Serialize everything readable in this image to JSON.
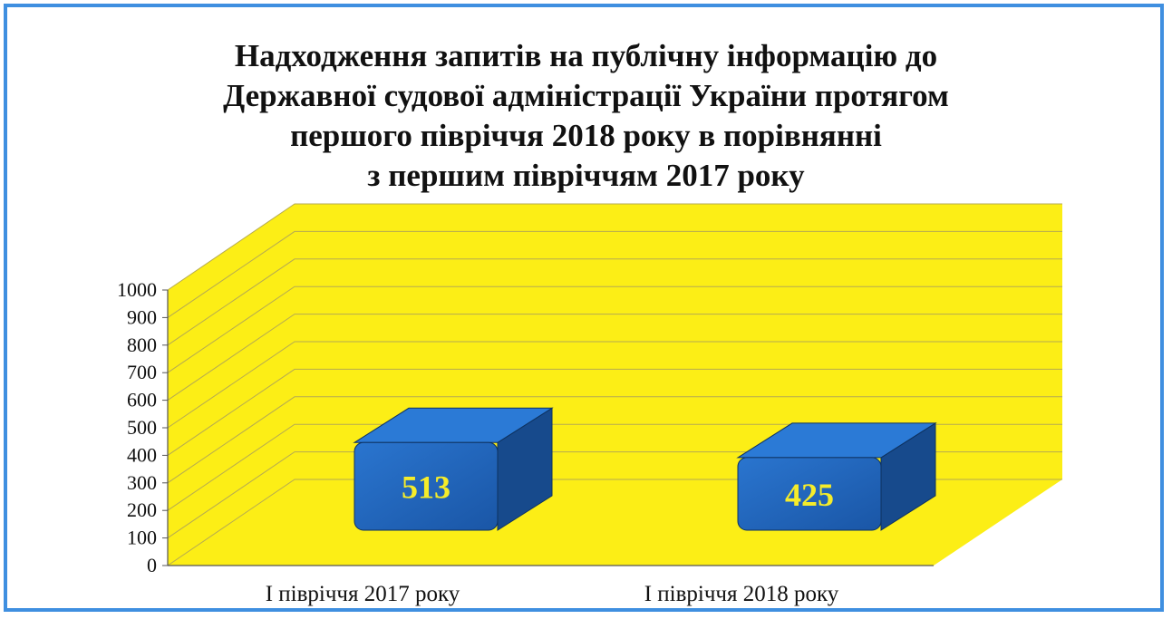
{
  "chart_data": {
    "type": "bar",
    "title_lines": [
      "Надходження запитів на публічну інформацію до",
      "Державної судової адміністрації України протягом",
      "першого півріччя 2018 року в порівнянні",
      "з першим півріччям 2017 року"
    ],
    "categories": [
      "І півріччя 2017 року",
      "І півріччя 2018 року"
    ],
    "values": [
      513,
      425
    ],
    "data_labels": [
      "513",
      "425"
    ],
    "ylim": [
      0,
      1000
    ],
    "y_ticks": [
      "0",
      "100",
      "200",
      "300",
      "400",
      "500",
      "600",
      "700",
      "800",
      "900",
      "1000"
    ],
    "grid": true,
    "style": "3d-box",
    "colors": {
      "bar": "#1f62b8",
      "wall": "#fcee16",
      "grid": "#b5aa52",
      "label": "#f5ec2a",
      "frame": "#3f8fe0"
    }
  }
}
